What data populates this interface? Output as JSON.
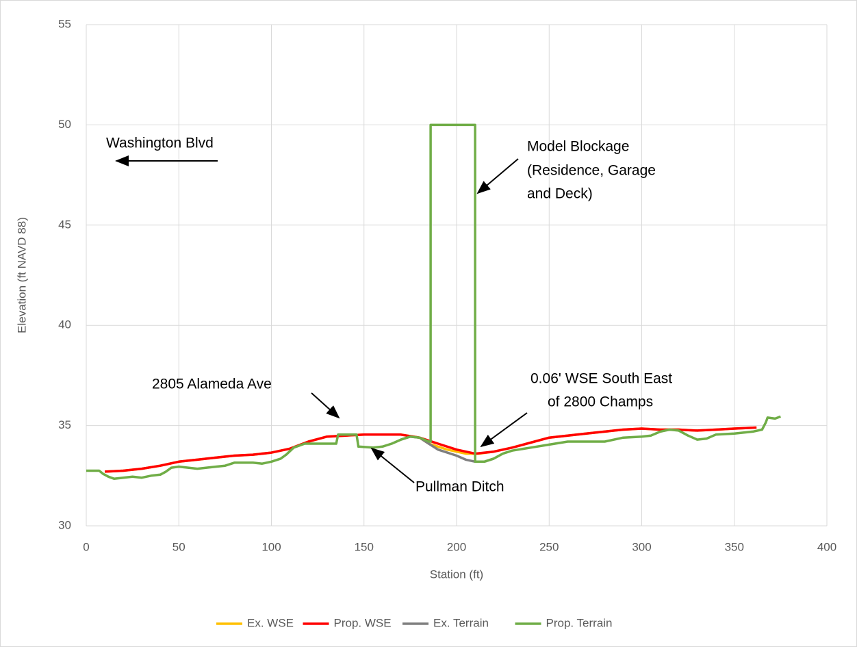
{
  "chart_data": {
    "type": "line",
    "xlabel": "Station (ft)",
    "ylabel": "Elevation (ft NAVD 88)",
    "xlim": [
      0,
      400
    ],
    "xticks": [
      0,
      50,
      100,
      150,
      200,
      250,
      300,
      350,
      400
    ],
    "ylim": [
      30,
      55
    ],
    "yticks": [
      30,
      35,
      40,
      45,
      50,
      55
    ],
    "grid": true,
    "legend": "bottom",
    "series": [
      {
        "name": "Ex. WSE",
        "color": "#ffc000",
        "x": [
          10,
          20,
          30,
          40,
          50,
          60,
          70,
          80,
          90,
          100,
          110,
          120,
          130,
          140,
          150,
          160,
          170,
          180,
          185,
          195,
          205,
          212,
          220,
          230,
          240,
          250,
          260,
          270,
          280,
          290,
          300,
          310,
          320,
          330,
          340,
          350,
          362
        ],
        "values": [
          32.7,
          32.75,
          32.85,
          33.0,
          33.2,
          33.3,
          33.4,
          33.5,
          33.55,
          33.65,
          33.85,
          34.2,
          34.45,
          34.5,
          34.55,
          34.55,
          34.55,
          34.4,
          34.1,
          33.8,
          33.6,
          33.6,
          33.7,
          33.9,
          34.15,
          34.4,
          34.5,
          34.6,
          34.7,
          34.8,
          34.85,
          34.8,
          34.8,
          34.75,
          34.8,
          34.85,
          34.9
        ]
      },
      {
        "name": "Ex. Terrain",
        "color": "#7f7f7f",
        "x": [
          170,
          175,
          180,
          185,
          190,
          195,
          200,
          205,
          210,
          215,
          220
        ],
        "values": [
          34.3,
          34.45,
          34.4,
          34.1,
          33.8,
          33.65,
          33.5,
          33.3,
          33.2,
          33.2,
          33.35
        ]
      },
      {
        "name": "Prop. WSE",
        "color": "#ff0000",
        "x": [
          10,
          20,
          30,
          40,
          50,
          60,
          70,
          80,
          90,
          100,
          110,
          120,
          130,
          140,
          150,
          160,
          170,
          180,
          190,
          200,
          210,
          220,
          230,
          240,
          250,
          260,
          270,
          280,
          290,
          300,
          310,
          320,
          330,
          340,
          350,
          362
        ],
        "values": [
          32.7,
          32.75,
          32.85,
          33.0,
          33.2,
          33.3,
          33.4,
          33.5,
          33.55,
          33.65,
          33.85,
          34.2,
          34.45,
          34.5,
          34.55,
          34.55,
          34.55,
          34.4,
          34.1,
          33.8,
          33.6,
          33.7,
          33.9,
          34.15,
          34.4,
          34.5,
          34.6,
          34.7,
          34.8,
          34.85,
          34.8,
          34.8,
          34.75,
          34.8,
          34.85,
          34.9
        ]
      },
      {
        "name": "Prop. Terrain",
        "color": "#70ad47",
        "x": [
          0,
          7,
          9,
          12,
          15,
          20,
          25,
          30,
          35,
          40,
          43,
          46,
          50,
          55,
          60,
          65,
          70,
          75,
          80,
          90,
          95,
          100,
          105,
          108,
          112,
          118,
          130,
          135,
          136,
          146,
          147,
          155,
          160,
          165,
          170,
          175,
          180,
          185,
          186,
          186,
          210,
          210,
          215,
          220,
          225,
          230,
          240,
          250,
          260,
          270,
          280,
          290,
          300,
          305,
          310,
          315,
          320,
          325,
          330,
          335,
          340,
          350,
          360,
          365,
          367,
          368,
          372,
          375
        ],
        "values": [
          32.75,
          32.75,
          32.6,
          32.45,
          32.35,
          32.4,
          32.45,
          32.4,
          32.5,
          32.55,
          32.7,
          32.9,
          32.95,
          32.9,
          32.85,
          32.9,
          32.95,
          33.0,
          33.15,
          33.15,
          33.1,
          33.2,
          33.35,
          33.55,
          33.9,
          34.1,
          34.1,
          34.1,
          34.55,
          34.55,
          33.95,
          33.9,
          33.95,
          34.1,
          34.3,
          34.45,
          34.4,
          34.2,
          34.2,
          50,
          50,
          33.2,
          33.2,
          33.35,
          33.6,
          33.75,
          33.9,
          34.05,
          34.2,
          34.2,
          34.2,
          34.4,
          34.45,
          34.5,
          34.7,
          34.8,
          34.75,
          34.5,
          34.3,
          34.35,
          34.55,
          34.6,
          34.7,
          34.8,
          35.15,
          35.4,
          35.35,
          35.45
        ]
      }
    ],
    "legend_order": [
      0,
      2,
      1,
      3
    ],
    "annotations": [
      [
        "Washington Blvd"
      ],
      [
        "Model Blockage",
        "(Residence, Garage",
        "and Deck)"
      ],
      [
        "2805 Alameda Ave"
      ],
      [
        "0.06' WSE South East",
        "of 2800 Champs"
      ],
      [
        "Pullman Ditch"
      ]
    ]
  }
}
